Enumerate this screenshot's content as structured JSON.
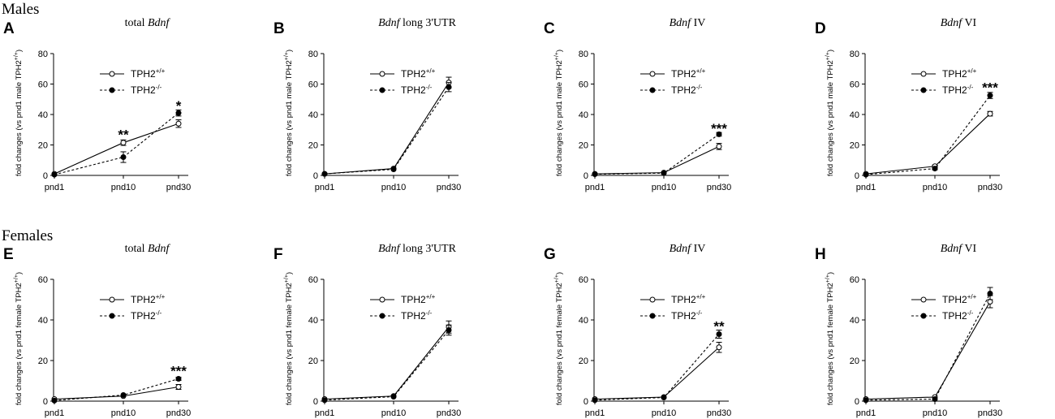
{
  "figure": {
    "section_males": "Males",
    "section_females": "Females"
  },
  "chart_data": [
    {
      "id": "A",
      "panel_label": "A",
      "group": "males",
      "type": "line",
      "title_gene": "total Bdnf",
      "title_italic": "total ",
      "title_italic_part": "Bdnf",
      "title_rest": "",
      "title_parts": [
        {
          "text": "total ",
          "italic": false
        },
        {
          "text": "Bdnf",
          "italic": true
        }
      ],
      "ylabel": "fold changes (vs pnd1 male TPH2+/+)",
      "ylabel_main": "fold changes (vs pnd1 male TPH2",
      "ylabel_sup": "+/+",
      "ylabel_end": ")",
      "ylim": [
        0,
        80
      ],
      "yticks": [
        "0",
        "20",
        "40",
        "60",
        "80"
      ],
      "categories": [
        "pnd1",
        "pnd10",
        "pnd30"
      ],
      "series": [
        {
          "name": "TPH2+/+",
          "legend_base": "TPH2",
          "legend_sup": "+/+",
          "marker": "open-circle",
          "line": "solid",
          "values": [
            1,
            21.5,
            34
          ],
          "errors": [
            0.6,
            1.8,
            2.5
          ]
        },
        {
          "name": "TPH2-/-",
          "legend_base": "TPH2",
          "legend_sup": "-/-",
          "marker": "filled-circle",
          "line": "dashed",
          "values": [
            0.5,
            12,
            41
          ],
          "errors": [
            0.6,
            3.5,
            2
          ]
        }
      ],
      "annotations": [
        {
          "category": "pnd10",
          "y": 27,
          "text": "**"
        },
        {
          "category": "pnd30",
          "y": 46,
          "text": "*"
        }
      ]
    },
    {
      "id": "B",
      "panel_label": "B",
      "group": "males",
      "type": "line",
      "title_parts": [
        {
          "text": "Bdnf",
          "italic": true
        },
        {
          "text": " long 3'UTR",
          "italic": false
        }
      ],
      "ylabel_main": "fold changes (vs pnd1 male TPH2",
      "ylabel_sup": "+/+",
      "ylabel_end": ")",
      "ylim": [
        0,
        80
      ],
      "yticks": [
        "0",
        "20",
        "40",
        "60",
        "80"
      ],
      "categories": [
        "pnd1",
        "pnd10",
        "pnd30"
      ],
      "series": [
        {
          "name": "TPH2+/+",
          "legend_base": "TPH2",
          "legend_sup": "+/+",
          "marker": "open-circle",
          "line": "solid",
          "values": [
            1,
            4.5,
            61
          ],
          "errors": [
            0.4,
            0.6,
            3.5
          ]
        },
        {
          "name": "TPH2-/-",
          "legend_base": "TPH2",
          "legend_sup": "-/-",
          "marker": "filled-circle",
          "line": "dashed",
          "values": [
            1,
            4,
            58
          ],
          "errors": [
            0.4,
            0.6,
            3
          ]
        }
      ],
      "annotations": []
    },
    {
      "id": "C",
      "panel_label": "C",
      "group": "males",
      "type": "line",
      "title_parts": [
        {
          "text": "Bdnf",
          "italic": true
        },
        {
          "text": " IV",
          "italic": false
        }
      ],
      "ylabel_main": "fold changes (vs pnd1 male TPH2",
      "ylabel_sup": "+/+",
      "ylabel_end": ")",
      "ylim": [
        0,
        80
      ],
      "yticks": [
        "0",
        "20",
        "40",
        "60",
        "80"
      ],
      "categories": [
        "pnd1",
        "pnd10",
        "pnd30"
      ],
      "series": [
        {
          "name": "TPH2+/+",
          "legend_base": "TPH2",
          "legend_sup": "+/+",
          "marker": "open-circle",
          "line": "solid",
          "values": [
            1,
            1.8,
            19
          ],
          "errors": [
            0.4,
            0.5,
            2
          ]
        },
        {
          "name": "TPH2-/-",
          "legend_base": "TPH2",
          "legend_sup": "-/-",
          "marker": "filled-circle",
          "line": "dashed",
          "values": [
            0.8,
            1.5,
            27
          ],
          "errors": [
            0.4,
            0.5,
            1.2
          ]
        }
      ],
      "annotations": [
        {
          "category": "pnd30",
          "y": 31,
          "text": "***"
        }
      ]
    },
    {
      "id": "D",
      "panel_label": "D",
      "group": "males",
      "type": "line",
      "title_parts": [
        {
          "text": "Bdnf",
          "italic": true
        },
        {
          "text": " VI",
          "italic": false
        }
      ],
      "ylabel_main": "fold changes (vs pnd1 male TPH2",
      "ylabel_sup": "+/+",
      "ylabel_end": ")",
      "ylim": [
        0,
        80
      ],
      "yticks": [
        "0",
        "20",
        "40",
        "60",
        "80"
      ],
      "categories": [
        "pnd1",
        "pnd10",
        "pnd30"
      ],
      "series": [
        {
          "name": "TPH2+/+",
          "legend_base": "TPH2",
          "legend_sup": "+/+",
          "marker": "open-circle",
          "line": "solid",
          "values": [
            1,
            6,
            40.5
          ],
          "errors": [
            0.4,
            0.8,
            1.5
          ]
        },
        {
          "name": "TPH2-/-",
          "legend_base": "TPH2",
          "legend_sup": "-/-",
          "marker": "filled-circle",
          "line": "dashed",
          "values": [
            0.5,
            4.5,
            52.5
          ],
          "errors": [
            0.4,
            0.8,
            2
          ]
        }
      ],
      "annotations": [
        {
          "category": "pnd30",
          "y": 58,
          "text": "***"
        }
      ]
    },
    {
      "id": "E",
      "panel_label": "E",
      "group": "females",
      "type": "line",
      "title_parts": [
        {
          "text": "total ",
          "italic": false
        },
        {
          "text": "Bdnf",
          "italic": true
        }
      ],
      "ylabel_main": "fold changes (vs pnd1 female TPH2",
      "ylabel_sup": "+/+",
      "ylabel_end": ")",
      "ylim": [
        0,
        60
      ],
      "yticks": [
        "0",
        "20",
        "40",
        "60"
      ],
      "categories": [
        "pnd1",
        "pnd10",
        "pnd30"
      ],
      "series": [
        {
          "name": "TPH2+/+",
          "legend_base": "TPH2",
          "legend_sup": "+/+",
          "marker": "open-circle",
          "line": "solid",
          "values": [
            1,
            2.5,
            7
          ],
          "errors": [
            0.4,
            0.5,
            1.2
          ]
        },
        {
          "name": "TPH2-/-",
          "legend_base": "TPH2",
          "legend_sup": "-/-",
          "marker": "filled-circle",
          "line": "dashed",
          "values": [
            0.3,
            3,
            11
          ],
          "errors": [
            0.3,
            0.5,
            0.8
          ]
        }
      ],
      "annotations": [
        {
          "category": "pnd30",
          "y": 15,
          "text": "***"
        }
      ]
    },
    {
      "id": "F",
      "panel_label": "F",
      "group": "females",
      "type": "line",
      "title_parts": [
        {
          "text": "Bdnf",
          "italic": true
        },
        {
          "text": " long 3'UTR",
          "italic": false
        }
      ],
      "ylabel_main": "fold changes (vs pnd1 female TPH2",
      "ylabel_sup": "+/+",
      "ylabel_end": ")",
      "ylim": [
        0,
        60
      ],
      "yticks": [
        "0",
        "20",
        "40",
        "60"
      ],
      "categories": [
        "pnd1",
        "pnd10",
        "pnd30"
      ],
      "series": [
        {
          "name": "TPH2+/+",
          "legend_base": "TPH2",
          "legend_sup": "+/+",
          "marker": "open-circle",
          "line": "solid",
          "values": [
            1,
            2.5,
            36.5
          ],
          "errors": [
            0.4,
            0.4,
            3
          ]
        },
        {
          "name": "TPH2-/-",
          "legend_base": "TPH2",
          "legend_sup": "-/-",
          "marker": "filled-circle",
          "line": "dashed",
          "values": [
            0.5,
            2.2,
            35
          ],
          "errors": [
            0.3,
            0.4,
            2.5
          ]
        }
      ],
      "annotations": []
    },
    {
      "id": "G",
      "panel_label": "G",
      "group": "females",
      "type": "line",
      "title_parts": [
        {
          "text": "Bdnf",
          "italic": true
        },
        {
          "text": " IV",
          "italic": false
        }
      ],
      "ylabel_main": "fold changes (vs pnd1 female TPH2",
      "ylabel_sup": "+/+",
      "ylabel_end": ")",
      "ylim": [
        0,
        60
      ],
      "yticks": [
        "0",
        "20",
        "40",
        "60"
      ],
      "categories": [
        "pnd1",
        "pnd10",
        "pnd30"
      ],
      "series": [
        {
          "name": "TPH2+/+",
          "legend_base": "TPH2",
          "legend_sup": "+/+",
          "marker": "open-circle",
          "line": "solid",
          "values": [
            1,
            2,
            26.5
          ],
          "errors": [
            0.4,
            0.4,
            2.5
          ]
        },
        {
          "name": "TPH2-/-",
          "legend_base": "TPH2",
          "legend_sup": "-/-",
          "marker": "filled-circle",
          "line": "dashed",
          "values": [
            0.5,
            1.8,
            33
          ],
          "errors": [
            0.3,
            0.4,
            2
          ]
        }
      ],
      "annotations": [
        {
          "category": "pnd30",
          "y": 37,
          "text": "**"
        }
      ]
    },
    {
      "id": "H",
      "panel_label": "H",
      "group": "females",
      "type": "line",
      "title_parts": [
        {
          "text": "Bdnf",
          "italic": true
        },
        {
          "text": " VI",
          "italic": false
        }
      ],
      "ylabel_main": "fold changes (vs pnd1 female TPH2",
      "ylabel_sup": "+/+",
      "ylabel_end": ")",
      "ylim": [
        0,
        60
      ],
      "yticks": [
        "0",
        "20",
        "40",
        "60"
      ],
      "categories": [
        "pnd1",
        "pnd10",
        "pnd30"
      ],
      "series": [
        {
          "name": "TPH2+/+",
          "legend_base": "TPH2",
          "legend_sup": "+/+",
          "marker": "open-circle",
          "line": "solid",
          "values": [
            1,
            2,
            49
          ],
          "errors": [
            0.4,
            0.5,
            3
          ]
        },
        {
          "name": "TPH2-/-",
          "legend_base": "TPH2",
          "legend_sup": "-/-",
          "marker": "filled-circle",
          "line": "dashed",
          "values": [
            0.5,
            1,
            53
          ],
          "errors": [
            0.3,
            0.4,
            3
          ]
        }
      ],
      "annotations": []
    }
  ]
}
